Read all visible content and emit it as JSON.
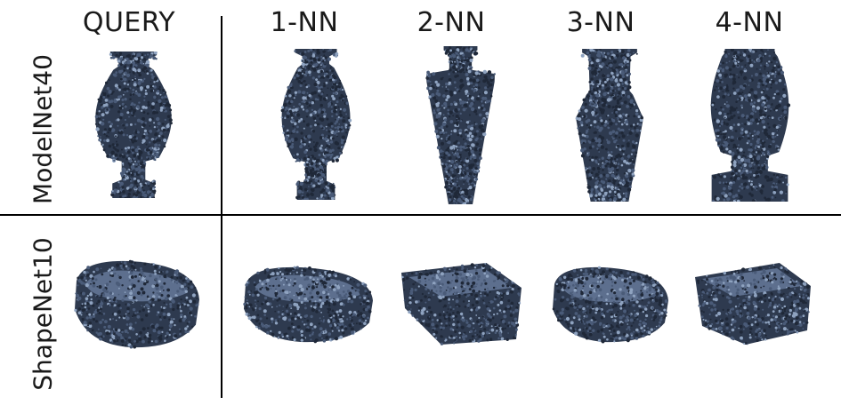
{
  "columns": [
    "QUERY",
    "1-NN",
    "2-NN",
    "3-NN",
    "4-NN"
  ],
  "rows": [
    {
      "label": "ModelNet40",
      "object": "vase"
    },
    {
      "label": "ShapeNet10",
      "object": "bathtub"
    }
  ],
  "colors": {
    "point_dark": "#2e3a4f",
    "point_mid": "#4a5b78",
    "point_light": "#8fa3c0",
    "rule": "#000000"
  }
}
